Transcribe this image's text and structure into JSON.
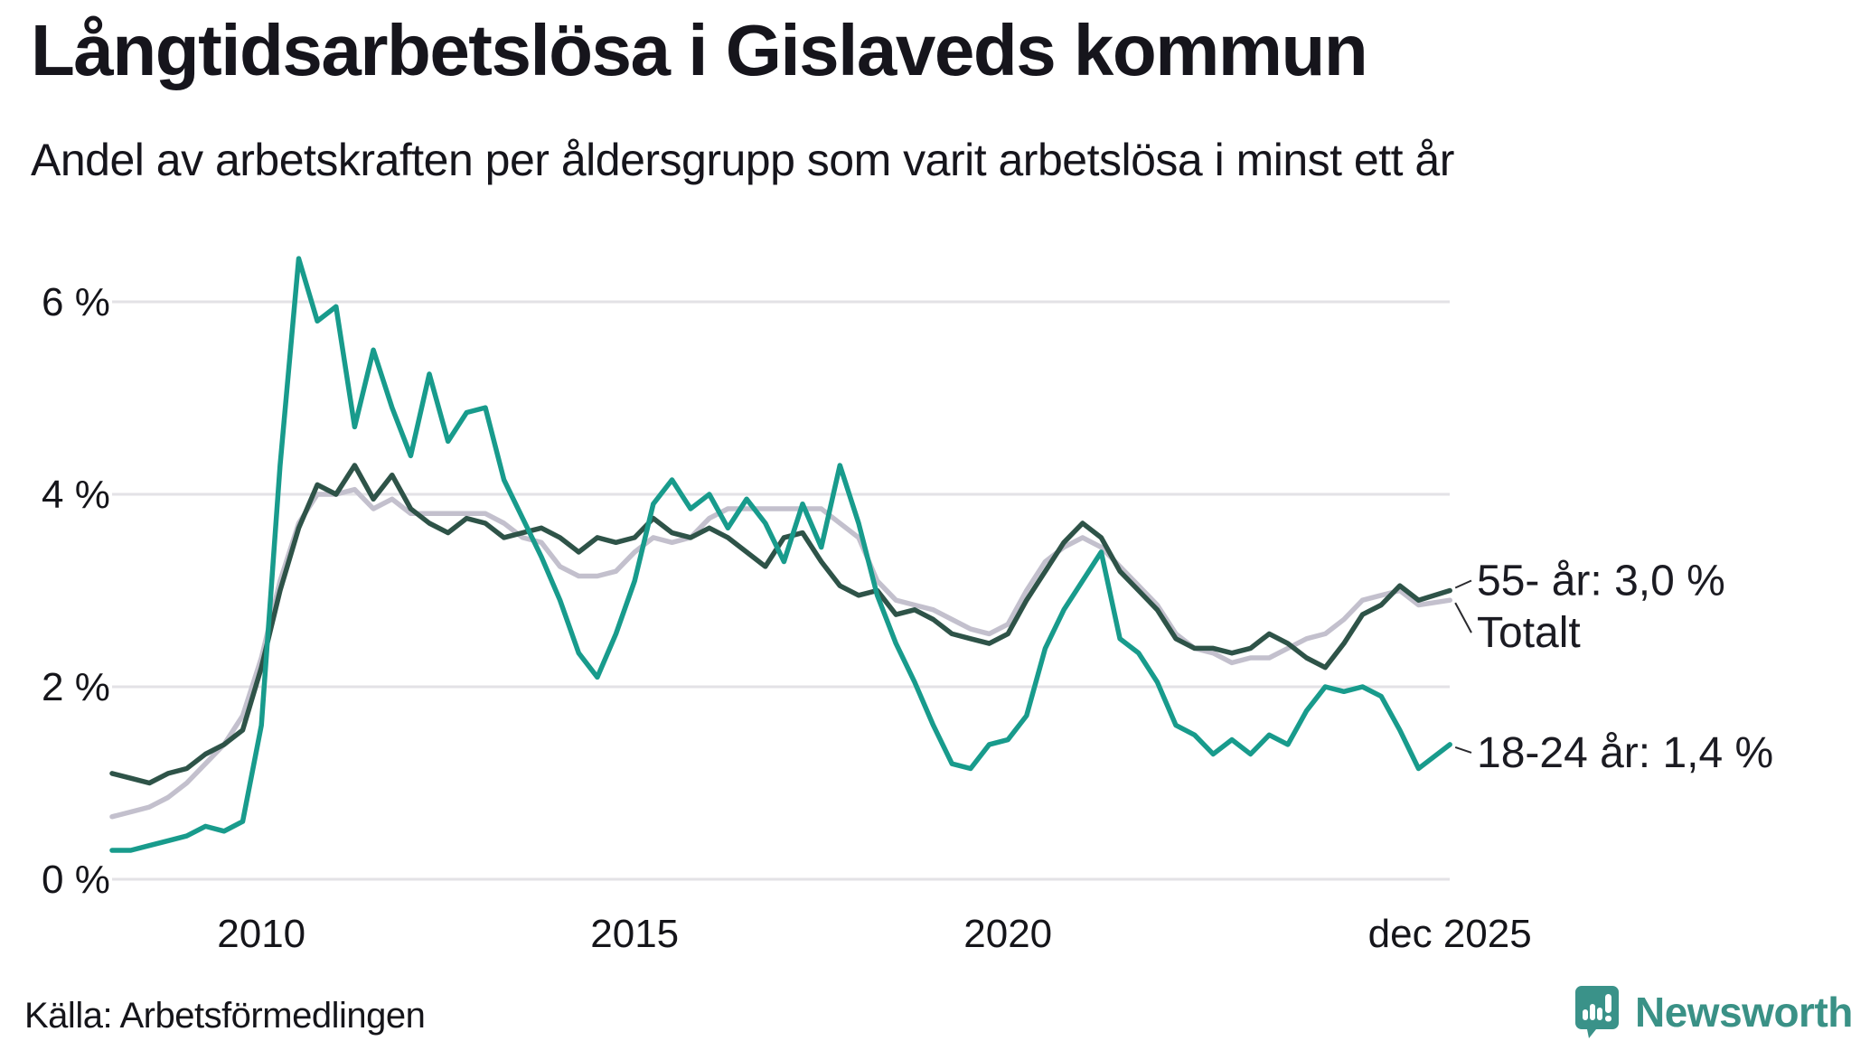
{
  "chart_data": {
    "type": "line",
    "title": "Långtidsarbetslösa i Gislaveds kommun",
    "subtitle": "Andel av arbetskraften per åldersgrupp som varit arbetslösa i minst ett år",
    "unit": "%",
    "xlabel": "",
    "ylabel": "",
    "ylim": [
      0,
      6.6
    ],
    "x_quarterly_start": 2008,
    "x_step_years": 0.25,
    "x_final_t": 2025.92,
    "grid": "horizontal gridlines at each y tick",
    "legend_position": "end-of-line annotations at right edge",
    "yticks": [
      {
        "value": 0,
        "label": "0 %"
      },
      {
        "value": 2,
        "label": "2 %"
      },
      {
        "value": 4,
        "label": "4 %"
      },
      {
        "value": 6,
        "label": "6 %"
      }
    ],
    "xticks": [
      {
        "t": 2010,
        "label": "2010"
      },
      {
        "t": 2015,
        "label": "2015"
      },
      {
        "t": 2020,
        "label": "2020"
      },
      {
        "t": 2025.92,
        "label": "dec 2025"
      }
    ],
    "series": [
      {
        "name": "Totalt",
        "color": "#c3c0cd",
        "values": [
          0.65,
          0.7,
          0.75,
          0.85,
          1.0,
          1.2,
          1.4,
          1.7,
          2.3,
          3.1,
          3.7,
          4.0,
          4.0,
          4.05,
          3.85,
          3.95,
          3.8,
          3.8,
          3.8,
          3.8,
          3.8,
          3.7,
          3.55,
          3.5,
          3.25,
          3.15,
          3.15,
          3.2,
          3.4,
          3.55,
          3.5,
          3.55,
          3.75,
          3.85,
          3.85,
          3.85,
          3.85,
          3.85,
          3.85,
          3.7,
          3.55,
          3.1,
          2.9,
          2.85,
          2.8,
          2.7,
          2.6,
          2.55,
          2.65,
          3.0,
          3.3,
          3.45,
          3.55,
          3.45,
          3.25,
          3.05,
          2.85,
          2.55,
          2.4,
          2.35,
          2.25,
          2.3,
          2.3,
          2.4,
          2.5,
          2.55,
          2.7,
          2.9,
          2.95,
          3.0,
          2.85,
          2.9
        ]
      },
      {
        "name": "55- år",
        "color": "#2e5348",
        "values": [
          1.1,
          1.05,
          1.0,
          1.1,
          1.15,
          1.3,
          1.4,
          1.55,
          2.2,
          3.0,
          3.65,
          4.1,
          4.0,
          4.3,
          3.95,
          4.2,
          3.85,
          3.7,
          3.6,
          3.75,
          3.7,
          3.55,
          3.6,
          3.65,
          3.55,
          3.4,
          3.55,
          3.5,
          3.55,
          3.75,
          3.6,
          3.55,
          3.65,
          3.55,
          3.4,
          3.25,
          3.55,
          3.6,
          3.3,
          3.05,
          2.95,
          3.0,
          2.75,
          2.8,
          2.7,
          2.55,
          2.5,
          2.45,
          2.55,
          2.9,
          3.2,
          3.5,
          3.7,
          3.55,
          3.2,
          3.0,
          2.8,
          2.5,
          2.4,
          2.4,
          2.35,
          2.4,
          2.55,
          2.45,
          2.3,
          2.2,
          2.45,
          2.75,
          2.85,
          3.05,
          2.9,
          3.0
        ]
      },
      {
        "name": "18-24 år",
        "color": "#189b8c",
        "values": [
          0.3,
          0.3,
          0.35,
          0.4,
          0.45,
          0.55,
          0.5,
          0.6,
          1.6,
          4.3,
          6.45,
          5.8,
          5.95,
          4.7,
          5.5,
          4.9,
          4.4,
          5.25,
          4.55,
          4.85,
          4.9,
          4.15,
          3.75,
          3.35,
          2.9,
          2.35,
          2.1,
          2.55,
          3.1,
          3.9,
          4.15,
          3.85,
          4.0,
          3.65,
          3.95,
          3.7,
          3.3,
          3.9,
          3.45,
          4.3,
          3.7,
          2.95,
          2.45,
          2.05,
          1.6,
          1.2,
          1.15,
          1.4,
          1.45,
          1.7,
          2.4,
          2.8,
          3.1,
          3.4,
          2.5,
          2.35,
          2.05,
          1.6,
          1.5,
          1.3,
          1.45,
          1.3,
          1.5,
          1.4,
          1.75,
          2.0,
          1.95,
          2.0,
          1.9,
          1.55,
          1.15,
          1.4
        ]
      }
    ],
    "annotations": [
      {
        "series": "55- år",
        "label": "55- år: 3,0 %",
        "dy": -11
      },
      {
        "series": "Totalt",
        "label": "Totalt",
        "dy": 36
      },
      {
        "series": "18-24 år",
        "label": "18-24 år: 1,4 %",
        "dy": 9
      }
    ],
    "end_values": {
      "55- år": "3,0 %",
      "Totalt": "2,9 %",
      "18-24 år": "1,4 %"
    }
  },
  "footer": {
    "source": "Källa: Arbetsförmedlingen",
    "brand": "Newsworthy"
  },
  "icons": {
    "logo": "newsworthy-speech-bubble-bar-chart-icon",
    "logo_color": "#3a9289"
  }
}
